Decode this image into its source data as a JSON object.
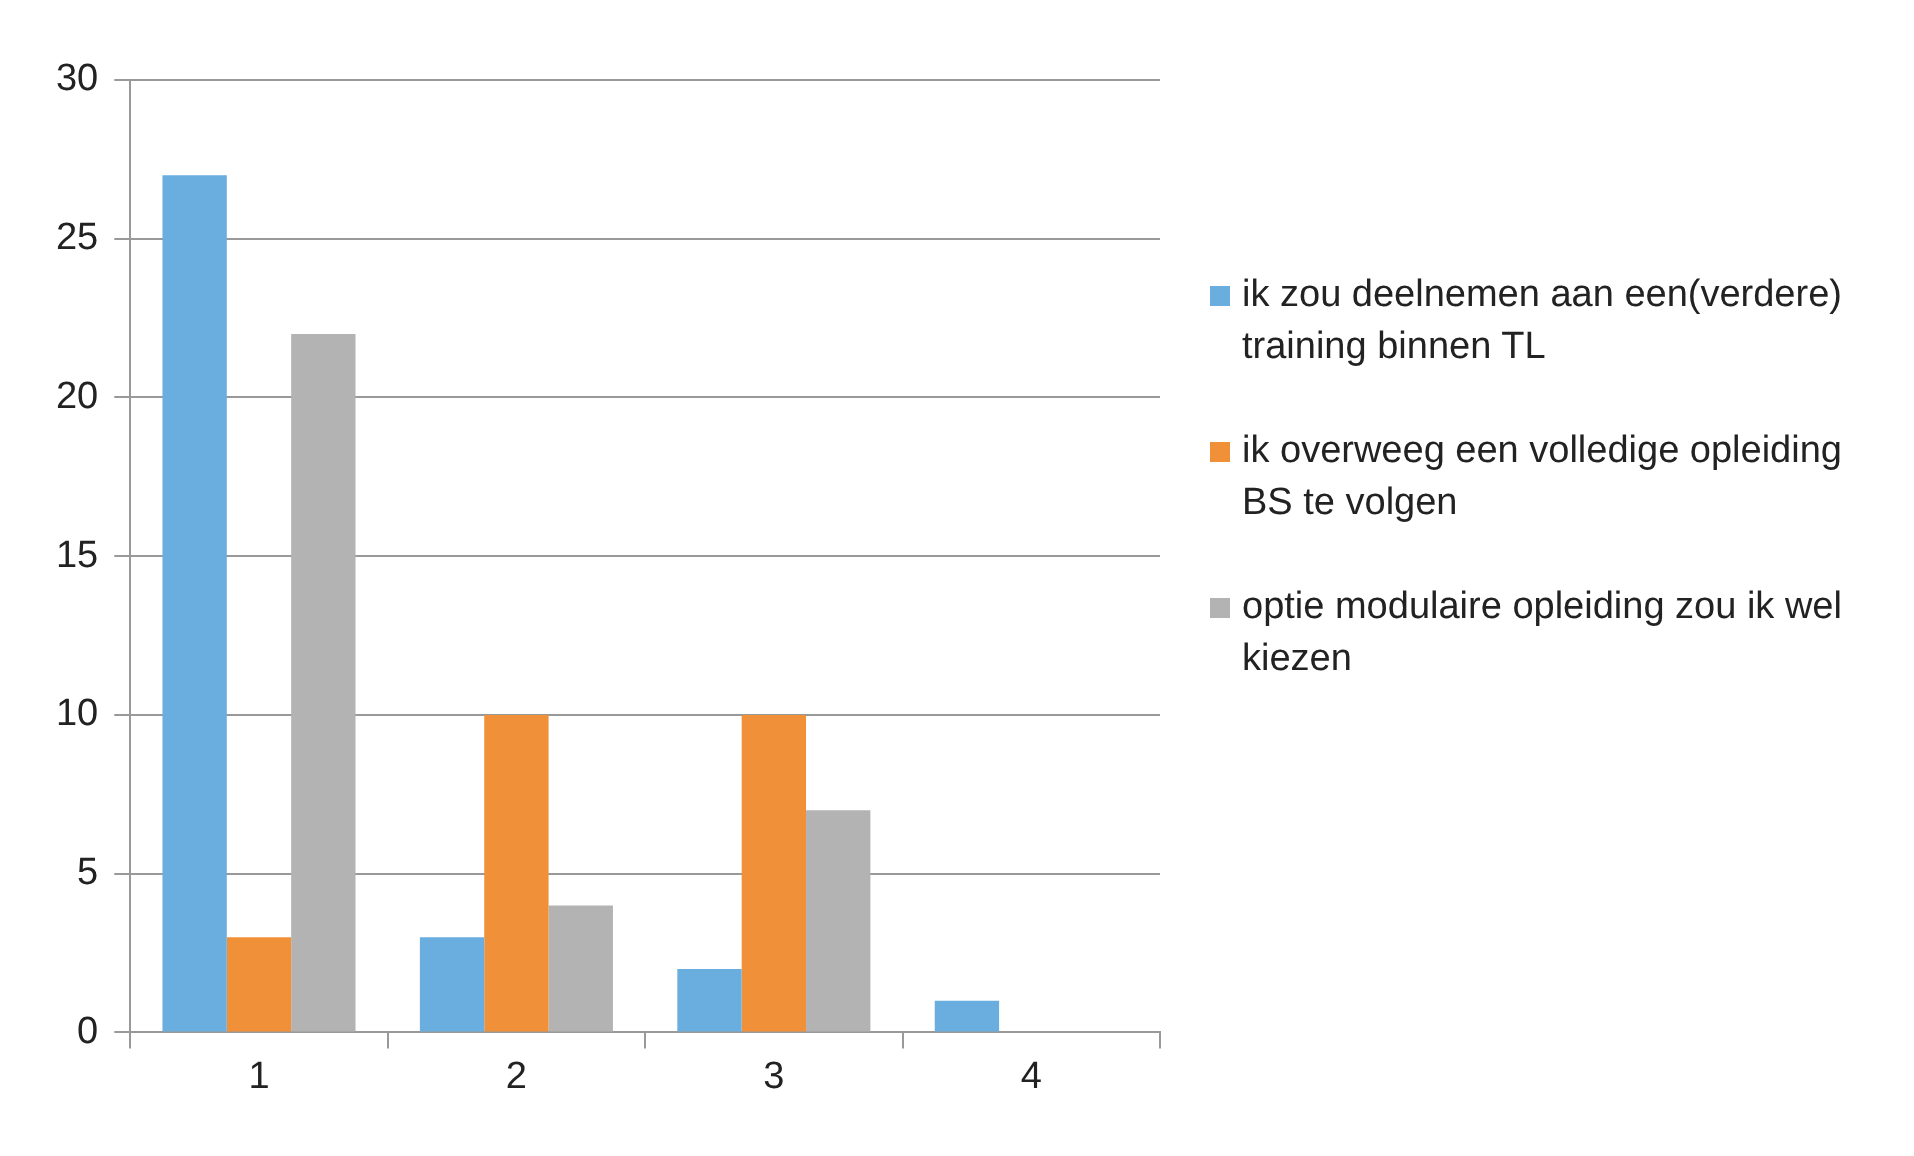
{
  "chart_data": {
    "type": "bar",
    "categories": [
      "1",
      "2",
      "3",
      "4"
    ],
    "series": [
      {
        "name": "ik zou deelnemen aan een(verdere) training binnen TL",
        "color": "#6aaee0",
        "values": [
          27,
          3,
          2,
          1
        ]
      },
      {
        "name": "ik overweeg een volledige opleiding BS te volgen",
        "color": "#f0913a",
        "values": [
          3,
          10,
          10,
          0
        ]
      },
      {
        "name": "optie modulaire opleiding zou ik wel kiezen",
        "color": "#b3b3b3",
        "values": [
          22,
          4,
          7,
          0
        ]
      }
    ],
    "ylim": [
      0,
      30
    ],
    "yticks": [
      0,
      5,
      10,
      15,
      20,
      25,
      30
    ],
    "grid": "y",
    "legend": "right"
  }
}
